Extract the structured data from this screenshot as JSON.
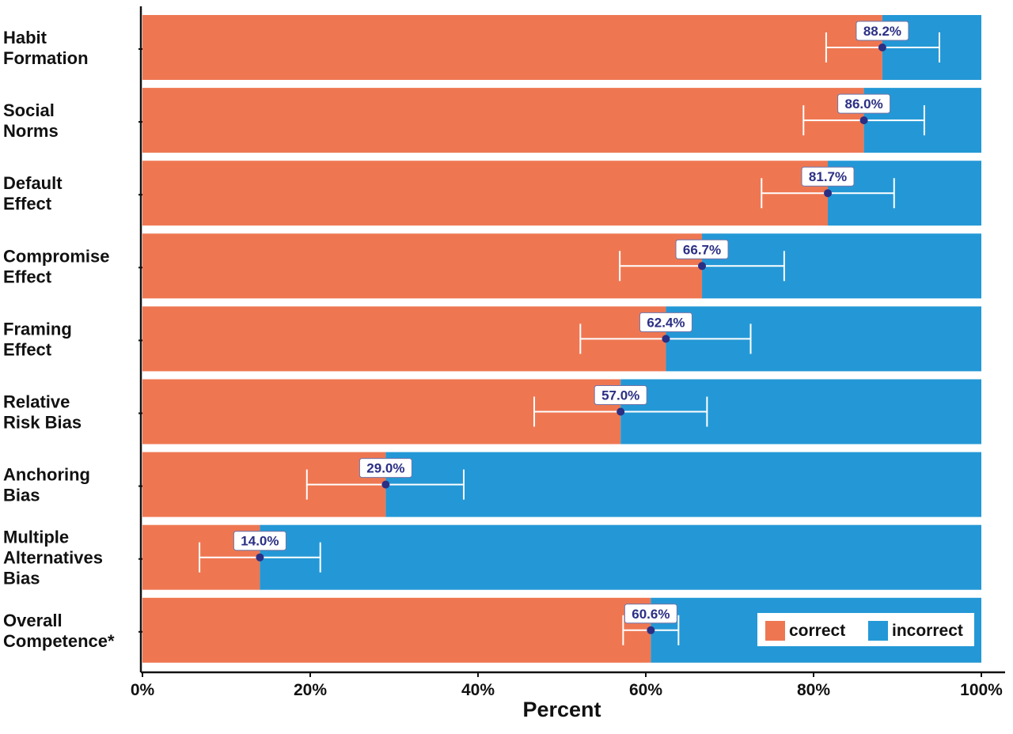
{
  "chart_data": {
    "type": "bar",
    "stacked": true,
    "orientation": "horizontal",
    "categories": [
      [
        "Habit",
        "Formation"
      ],
      [
        "Social",
        "Norms"
      ],
      [
        "Default",
        "Effect"
      ],
      [
        "Compromise",
        "Effect"
      ],
      [
        "Framing",
        "Effect"
      ],
      [
        "Relative",
        "Risk Bias"
      ],
      [
        "Anchoring",
        "Bias"
      ],
      [
        "Multiple",
        "Alternatives",
        "Bias"
      ],
      [
        "Overall",
        "Competence*"
      ]
    ],
    "series": [
      {
        "name": "correct",
        "color": "#ee7752",
        "values": [
          88.2,
          86.0,
          81.7,
          66.7,
          62.4,
          57.0,
          29.0,
          14.0,
          60.6
        ]
      },
      {
        "name": "incorrect",
        "color": "#2498d6",
        "values": [
          11.8,
          14.0,
          18.3,
          33.3,
          37.6,
          43.0,
          71.0,
          86.0,
          39.4
        ]
      }
    ],
    "point_labels": [
      "88.2%",
      "86.0%",
      "81.7%",
      "66.7%",
      "62.4%",
      "57.0%",
      "29.0%",
      "14.0%",
      "60.6%"
    ],
    "error_bars": [
      [
        81.5,
        95.0
      ],
      [
        78.8,
        93.2
      ],
      [
        73.8,
        89.6
      ],
      [
        56.9,
        76.5
      ],
      [
        52.2,
        72.5
      ],
      [
        46.7,
        67.3
      ],
      [
        19.6,
        38.3
      ],
      [
        6.8,
        21.2
      ],
      [
        57.3,
        63.9
      ]
    ],
    "xlabel": "Percent",
    "ylabel": "",
    "xlim": [
      0,
      100
    ],
    "x_ticks": [
      "0%",
      "20%",
      "40%",
      "60%",
      "80%",
      "100%"
    ],
    "legend_position": "bottom-right",
    "point_color": "#2b2f84",
    "error_bar_color": "#ffffff"
  }
}
